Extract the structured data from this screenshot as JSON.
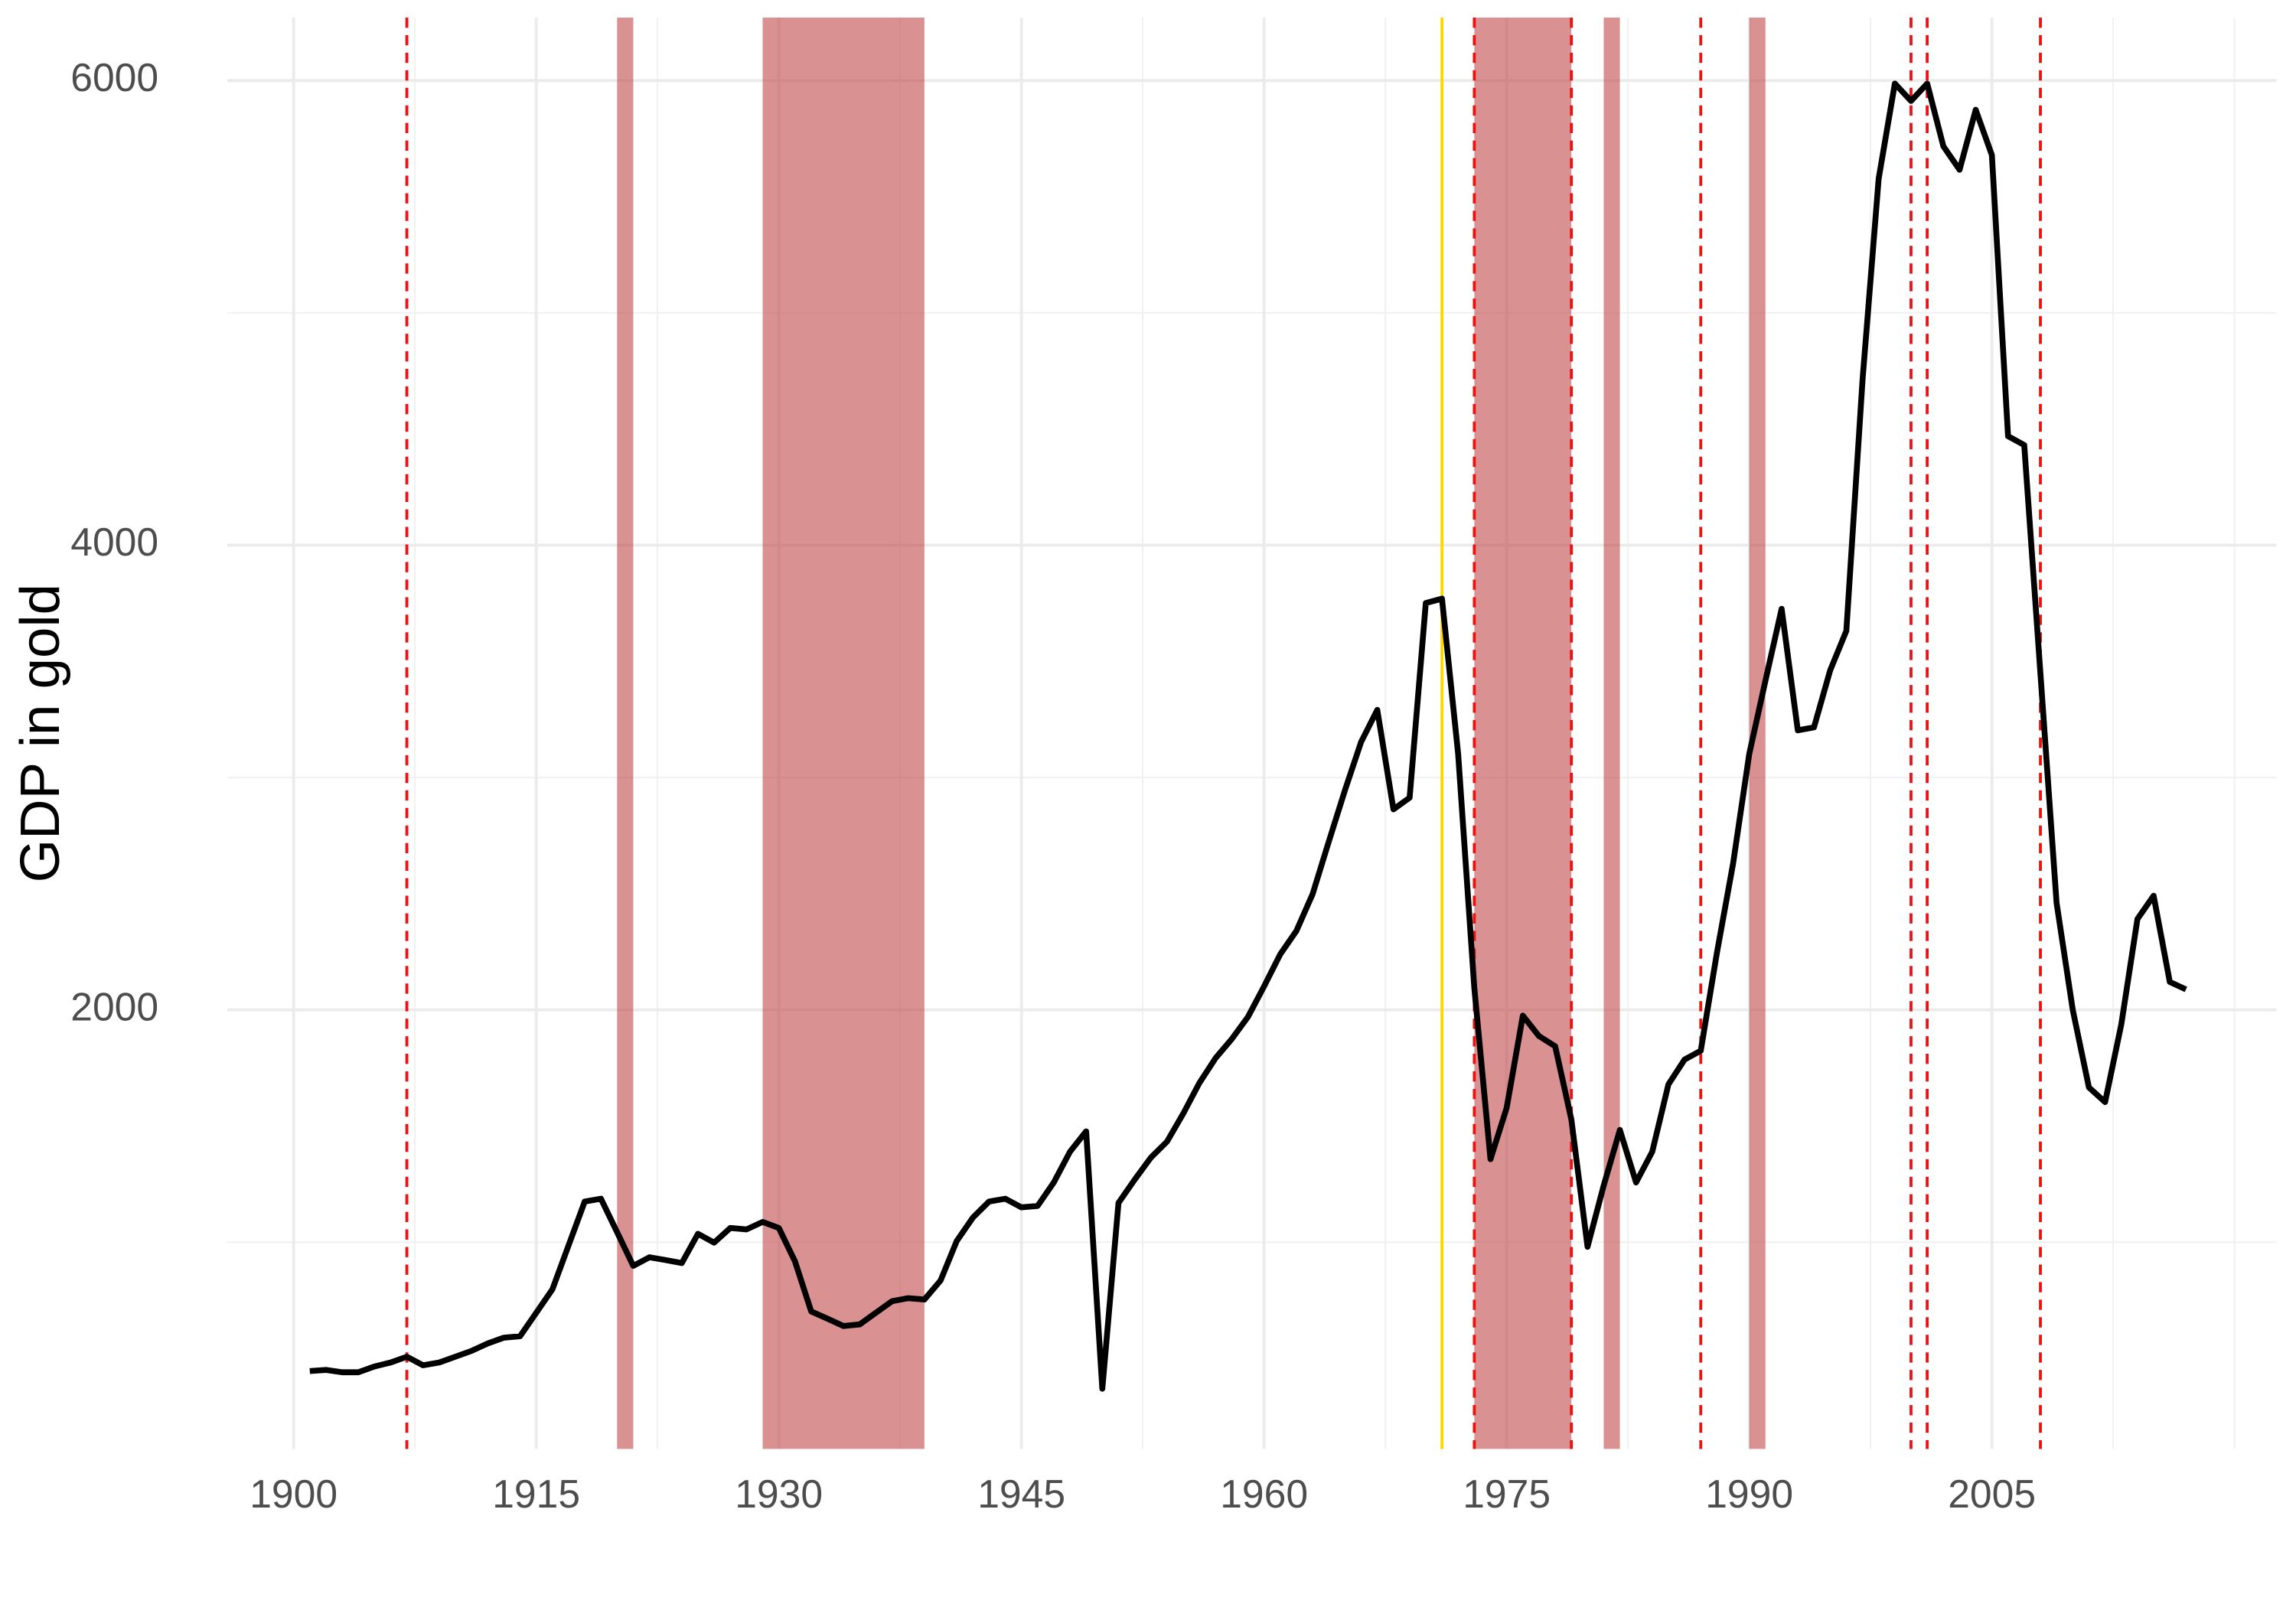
{
  "chart_data": {
    "type": "line",
    "y_label": "GDP in gold",
    "x": [
      1901,
      1902,
      1903,
      1904,
      1905,
      1906,
      1907,
      1908,
      1909,
      1910,
      1911,
      1912,
      1913,
      1914,
      1915,
      1916,
      1917,
      1918,
      1919,
      1920,
      1921,
      1922,
      1923,
      1924,
      1925,
      1926,
      1927,
      1928,
      1929,
      1930,
      1931,
      1932,
      1933,
      1934,
      1935,
      1936,
      1937,
      1938,
      1939,
      1940,
      1941,
      1942,
      1943,
      1944,
      1945,
      1946,
      1947,
      1948,
      1949,
      1950,
      1951,
      1952,
      1953,
      1954,
      1955,
      1956,
      1957,
      1958,
      1959,
      1960,
      1961,
      1962,
      1963,
      1964,
      1965,
      1966,
      1967,
      1968,
      1969,
      1970,
      1971,
      1972,
      1973,
      1974,
      1975,
      1976,
      1977,
      1978,
      1979,
      1980,
      1981,
      1982,
      1983,
      1984,
      1985,
      1986,
      1987,
      1988,
      1989,
      1990,
      1991,
      1992,
      1993,
      1994,
      1995,
      1996,
      1997,
      1998,
      1999,
      2000,
      2001,
      2002,
      2003,
      2004,
      2005,
      2006,
      2007,
      2008,
      2009,
      2010,
      2011,
      2012,
      2013,
      2014,
      2015,
      2016,
      2017
    ],
    "values": [
      445,
      450,
      440,
      440,
      465,
      482,
      507,
      470,
      482,
      507,
      532,
      564,
      589,
      595,
      696,
      797,
      986,
      1175,
      1187,
      1043,
      898,
      935,
      923,
      910,
      1036,
      998,
      1061,
      1055,
      1087,
      1061,
      917,
      702,
      671,
      639,
      646,
      696,
      746,
      759,
      753,
      835,
      1005,
      1106,
      1175,
      1187,
      1150,
      1156,
      1257,
      1389,
      1477,
      369,
      1169,
      1269,
      1364,
      1433,
      1553,
      1685,
      1792,
      1874,
      1969,
      2101,
      2239,
      2340,
      2498,
      2724,
      2945,
      3153,
      3291,
      2863,
      2913,
      3751,
      3770,
      3102,
      2094,
      1357,
      1578,
      1975,
      1887,
      1843,
      1528,
      980,
      1244,
      1483,
      1257,
      1389,
      1679,
      1786,
      1824,
      2246,
      2630,
      3102,
      3417,
      3726,
      3203,
      3216,
      3461,
      3631,
      4709,
      5578,
      5987,
      5912,
      5987,
      5717,
      5616,
      5874,
      5679,
      4469,
      4431,
      3449,
      2460,
      2000,
      1666,
      1603,
      1937,
      2391,
      2491,
      2120,
      2088
    ],
    "color": "#000000",
    "xlim": [
      1895.9,
      2022.6
    ],
    "ylim": [
      110,
      6271
    ],
    "xticks": [
      1900,
      1915,
      1930,
      1945,
      1960,
      1975,
      1990,
      2005
    ],
    "x_minor_grid": [
      1907.5,
      1922.5,
      1937.5,
      1952.5,
      1967.5,
      1982.5,
      1997.5,
      2012.5,
      2020
    ],
    "yticks": [
      2000,
      4000,
      6000
    ],
    "y_minor_grid": [
      1000,
      3000,
      5000
    ],
    "grid": true,
    "shaded_periods": [
      [
        1920,
        1921
      ],
      [
        1929,
        1939
      ],
      [
        1973,
        1979
      ],
      [
        1981,
        1982
      ],
      [
        1990,
        1991
      ]
    ],
    "shade_color": "#c0474a",
    "dashed_lines": [
      1907,
      1973,
      1979,
      1987,
      2000,
      2001,
      2008
    ],
    "dashed_color": "#ee1111",
    "solid_line": 1971,
    "solid_line_color": "#ffd700"
  }
}
